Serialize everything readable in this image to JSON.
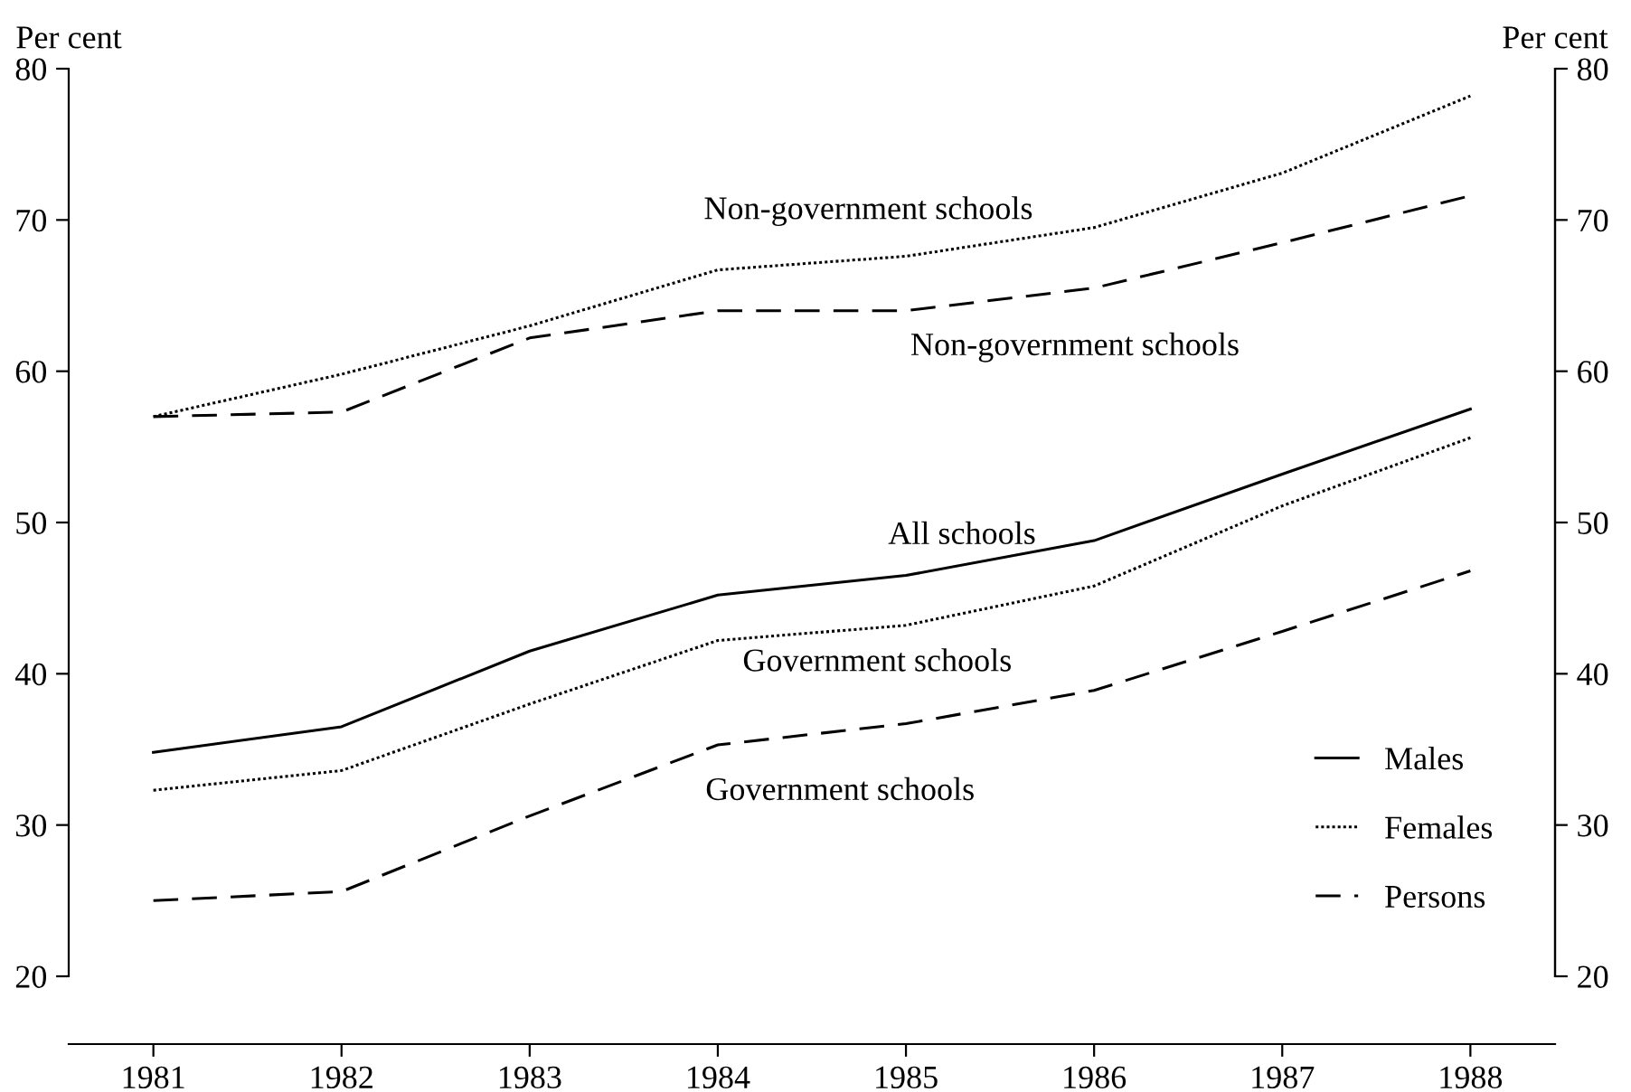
{
  "chart_data": {
    "type": "line",
    "ylabel": "Per cent",
    "y2label": "Per cent",
    "x": [
      1981,
      1982,
      1983,
      1984,
      1985,
      1986,
      1987,
      1988
    ],
    "xlim": [
      1980.55,
      1988.45
    ],
    "xticks": [
      1981,
      1982,
      1983,
      1984,
      1985,
      1986,
      1987,
      1988
    ],
    "ylim": [
      20,
      80
    ],
    "yticks": [
      20,
      30,
      40,
      50,
      60,
      70,
      80
    ],
    "y2lim": [
      20,
      80
    ],
    "y2ticks": [
      20,
      30,
      40,
      50,
      60,
      70,
      80
    ],
    "grid": false,
    "legend": "bottom right",
    "marker": "none",
    "series": [
      {
        "name": "Males",
        "color": "#000000",
        "line_style": "solid",
        "values": [
          34.8,
          36.5,
          41.5,
          45.2,
          46.5,
          48.8,
          53.2,
          57.5
        ]
      },
      {
        "name": "Females",
        "color": "#000000",
        "line_style": "dotted",
        "values": [
          57.0,
          59.8,
          63.0,
          66.7,
          67.6,
          69.5,
          73.1,
          78.2
        ]
      },
      {
        "name": "Persons",
        "color": "#000000",
        "line_style": "dashed",
        "values": [
          57.0,
          57.3,
          62.2,
          64.0,
          64.0,
          65.5,
          68.5,
          71.6
        ]
      },
      {
        "color": "#000000",
        "line_style": "dotted",
        "values": [
          32.3,
          33.6,
          38.0,
          42.2,
          43.2,
          45.8,
          51.1,
          55.6
        ]
      },
      {
        "color": "#000000",
        "line_style": "dashed",
        "values": [
          25.0,
          25.6,
          30.6,
          35.3,
          36.7,
          38.9,
          42.8,
          46.8
        ]
      }
    ],
    "annotations": [
      "Non-government schools",
      "Non-government schools",
      "All schools",
      "Government schools",
      "Government schools"
    ]
  }
}
